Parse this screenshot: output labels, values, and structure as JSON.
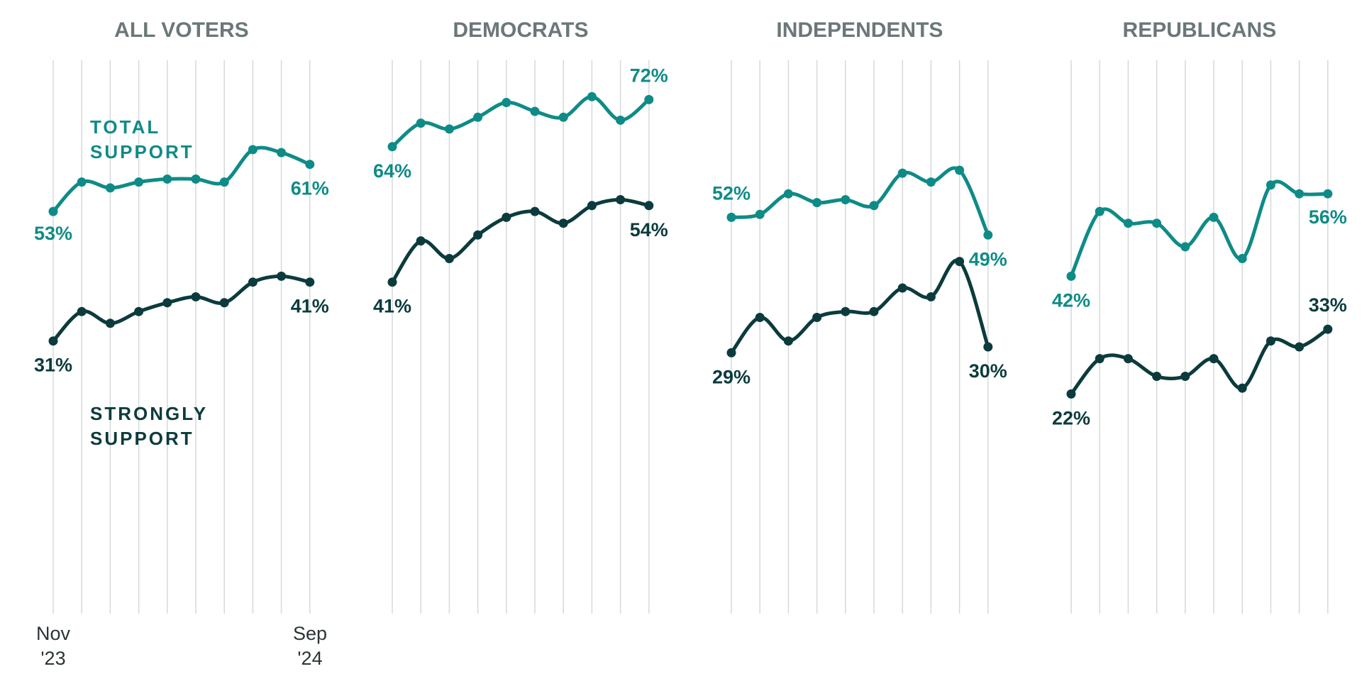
{
  "chart_data": {
    "type": "line",
    "colors": {
      "total": "#0f8b87",
      "strong": "#0c3b3d"
    },
    "x_labels": {
      "start": [
        "Nov",
        "'23"
      ],
      "end": [
        "Sep",
        "'24"
      ]
    },
    "series_labels": {
      "total": [
        "TOTAL",
        "SUPPORT"
      ],
      "strong": [
        "STRONGLY",
        "SUPPORT"
      ]
    },
    "ylim": [
      10,
      80
    ],
    "panels": [
      {
        "title": "ALL VOTERS",
        "series": [
          {
            "key": "total",
            "values": [
              53,
              58,
              57,
              58,
              58.5,
              58.5,
              58,
              63.5,
              63,
              61
            ]
          },
          {
            "key": "strong",
            "values": [
              31,
              36,
              34,
              36,
              37.5,
              38.5,
              37.5,
              41,
              42,
              41
            ]
          }
        ],
        "labels": {
          "total": {
            "start": "53%",
            "end": "61%"
          },
          "strong": {
            "start": "31%",
            "end": "41%"
          }
        }
      },
      {
        "title": "DEMOCRATS",
        "series": [
          {
            "key": "total",
            "values": [
              64,
              68,
              67,
              69,
              71.5,
              70,
              69,
              72.5,
              68.5,
              72
            ]
          },
          {
            "key": "strong",
            "values": [
              41,
              48,
              45,
              49,
              52,
              53,
              51,
              54,
              55,
              54
            ]
          }
        ],
        "labels": {
          "total": {
            "start": "64%",
            "end": "72%"
          },
          "strong": {
            "start": "41%",
            "end": "54%"
          }
        }
      },
      {
        "title": "INDEPENDENTS",
        "series": [
          {
            "key": "total",
            "values": [
              52,
              52.5,
              56,
              54.5,
              55,
              54,
              59.5,
              58,
              60,
              49
            ]
          },
          {
            "key": "strong",
            "values": [
              29,
              35,
              31,
              35,
              36,
              36,
              40,
              38.5,
              44.5,
              30
            ]
          }
        ],
        "labels": {
          "total": {
            "start": "52%",
            "end": "49%"
          },
          "strong": {
            "start": "29%",
            "end": "30%"
          }
        }
      },
      {
        "title": "REPUBLICANS",
        "series": [
          {
            "key": "total",
            "values": [
              42,
              53,
              51,
              51,
              47,
              52,
              45,
              57.5,
              56,
              56
            ]
          },
          {
            "key": "strong",
            "values": [
              22,
              28,
              28,
              25,
              25,
              28,
              23,
              31,
              30,
              33
            ]
          }
        ],
        "labels": {
          "total": {
            "start": "42%",
            "end": "56%"
          },
          "strong": {
            "start": "22%",
            "end": "33%"
          }
        }
      }
    ]
  }
}
